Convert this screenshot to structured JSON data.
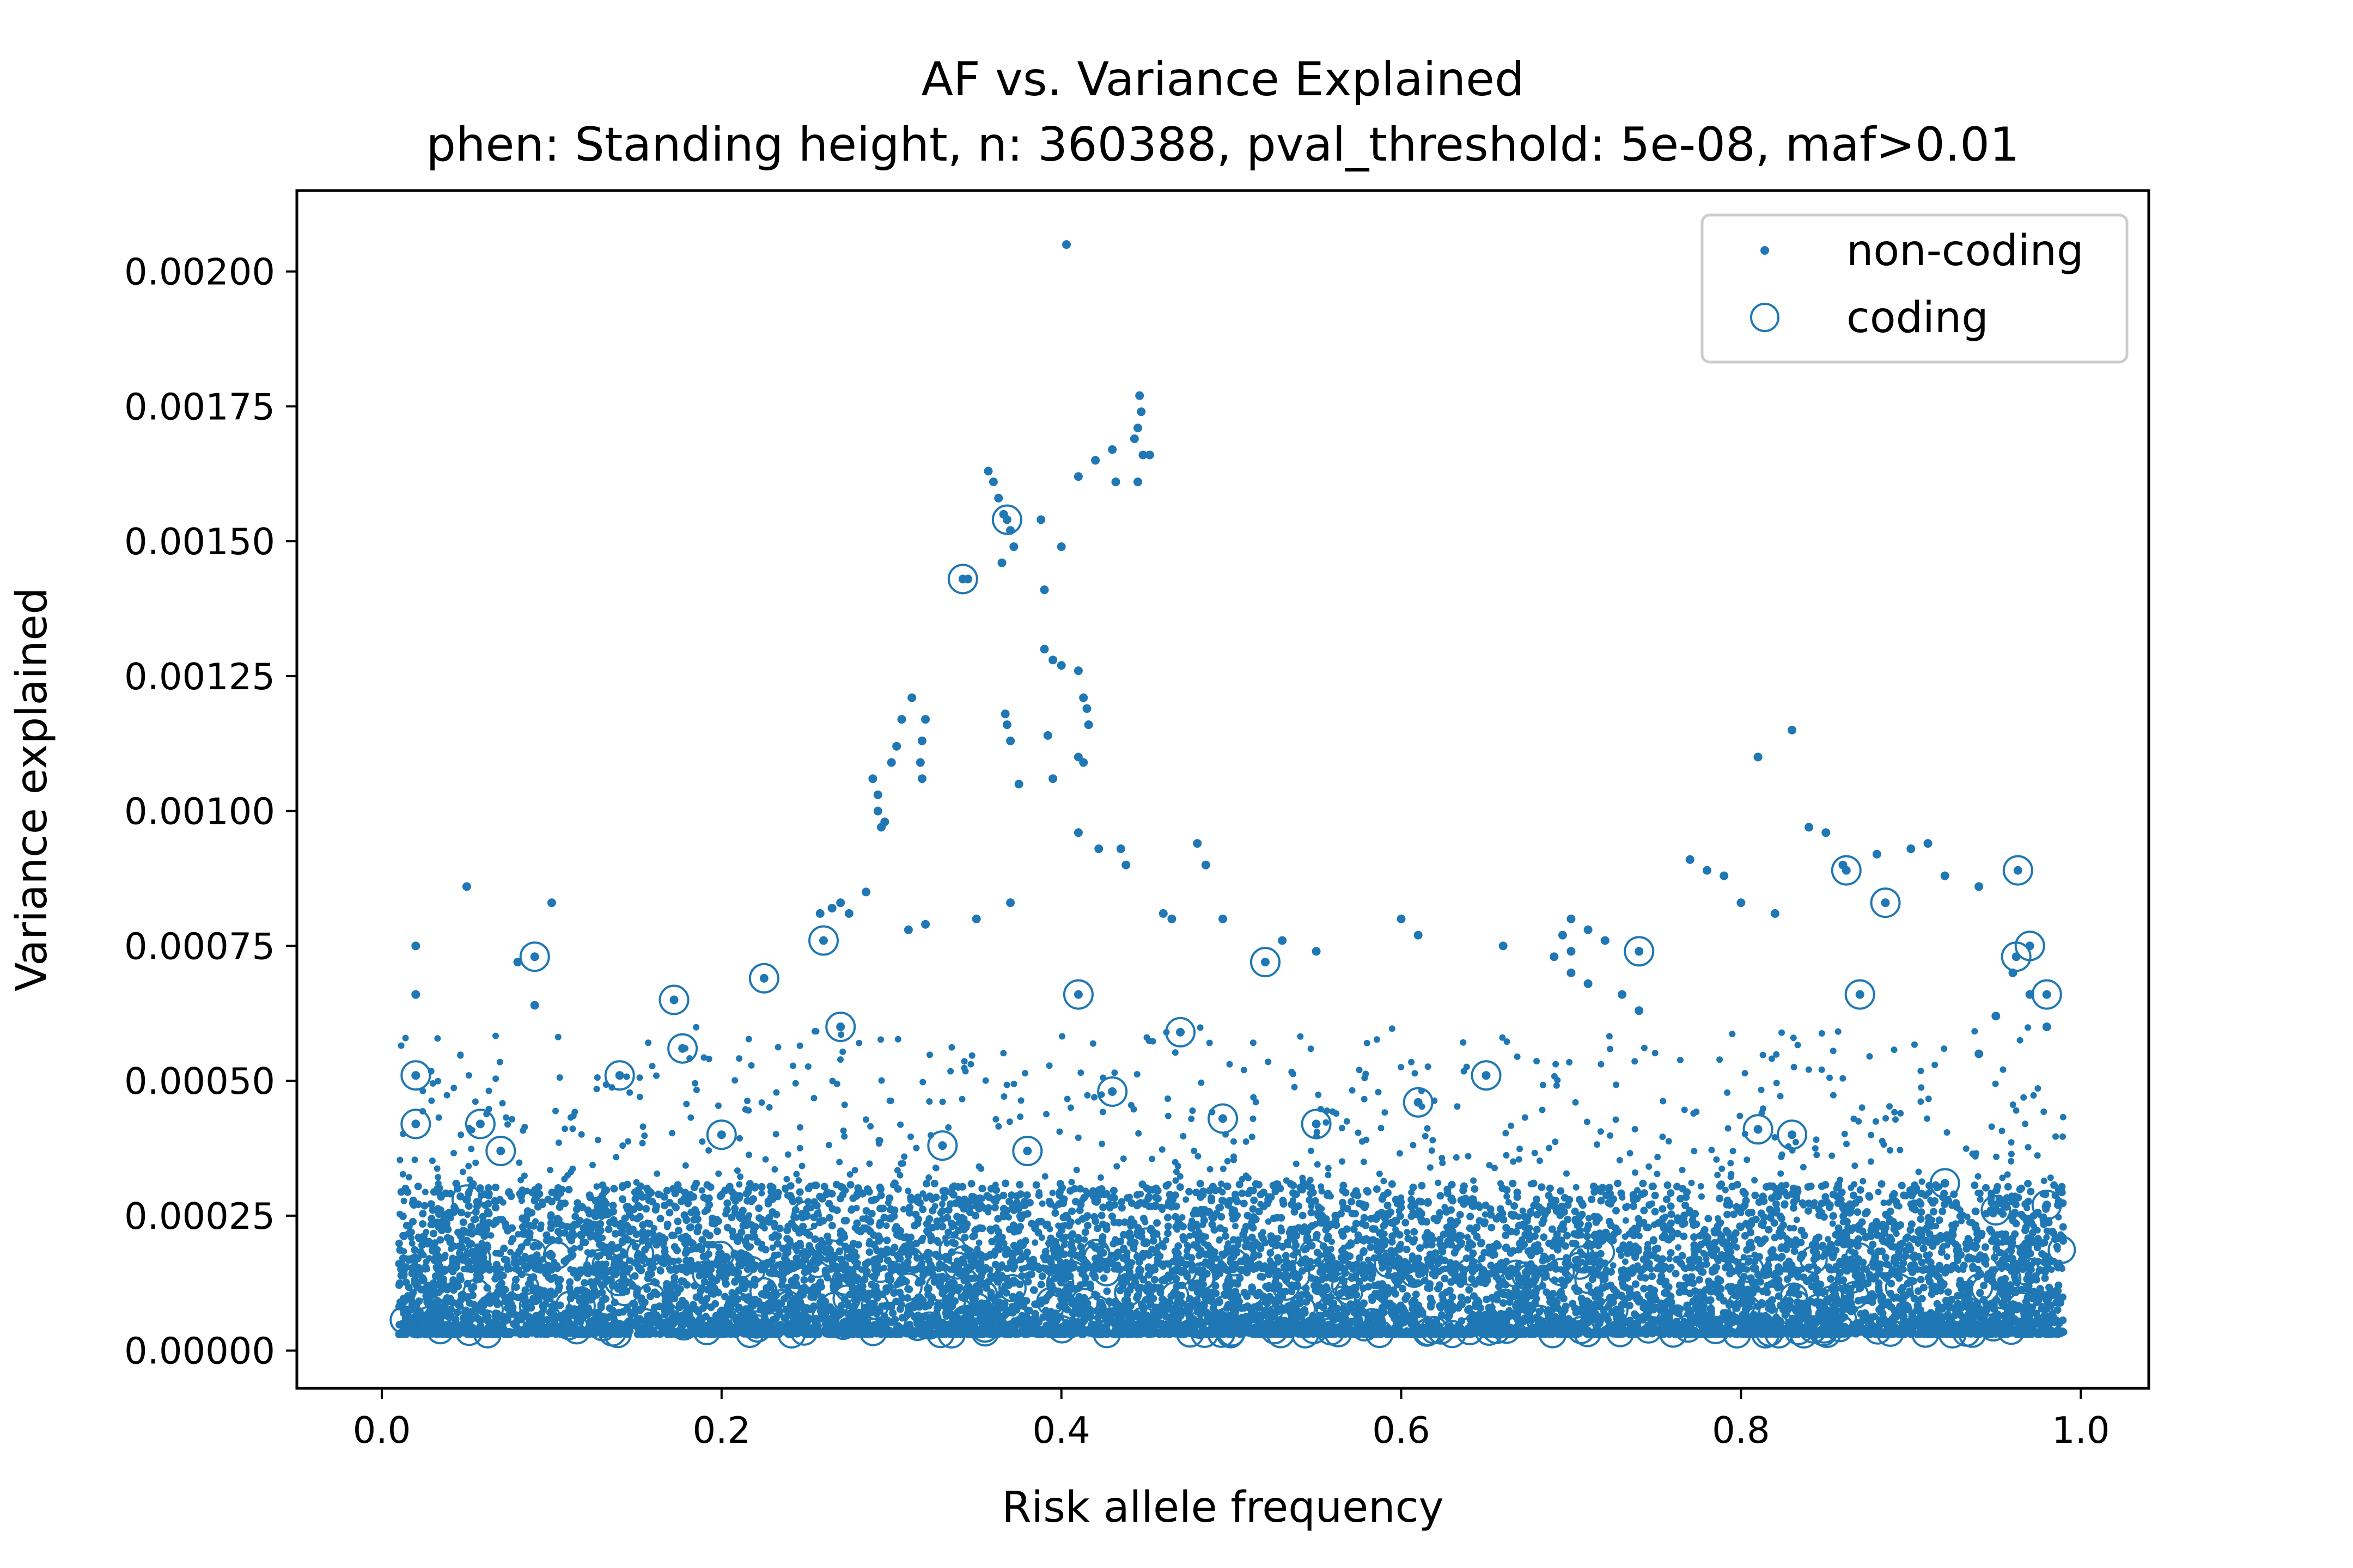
{
  "chart_data": {
    "type": "scatter",
    "title": "AF vs. Variance Explained",
    "subtitle": "phen: Standing height, n: 360388, pval_threshold: 5e-08, maf>0.01",
    "xlabel": "Risk allele frequency",
    "ylabel": "Variance explained",
    "xlim": [
      -0.05,
      1.04
    ],
    "ylim": [
      -7e-05,
      0.00215
    ],
    "x_ticks": [
      0.0,
      0.2,
      0.4,
      0.6,
      0.8,
      1.0
    ],
    "x_tick_labels": [
      "0.0",
      "0.2",
      "0.4",
      "0.6",
      "0.8",
      "1.0"
    ],
    "y_ticks": [
      0.0,
      0.00025,
      0.0005,
      0.00075,
      0.001,
      0.00125,
      0.0015,
      0.00175,
      0.002
    ],
    "y_tick_labels": [
      "0.00000",
      "0.00025",
      "0.00050",
      "0.00075",
      "0.00100",
      "0.00125",
      "0.00150",
      "0.00175",
      "0.00200"
    ],
    "grid": false,
    "legend_position": "top-right",
    "color": "#1f77b4",
    "series": [
      {
        "name": "non-coding",
        "marker": "dot",
        "points": [
          [
            0.403,
            0.00205
          ],
          [
            0.446,
            0.00177
          ],
          [
            0.447,
            0.00174
          ],
          [
            0.445,
            0.00171
          ],
          [
            0.443,
            0.00169
          ],
          [
            0.448,
            0.00166
          ],
          [
            0.452,
            0.00166
          ],
          [
            0.43,
            0.00167
          ],
          [
            0.42,
            0.00165
          ],
          [
            0.41,
            0.00162
          ],
          [
            0.432,
            0.00161
          ],
          [
            0.445,
            0.00161
          ],
          [
            0.357,
            0.00163
          ],
          [
            0.36,
            0.00161
          ],
          [
            0.363,
            0.00158
          ],
          [
            0.366,
            0.00155
          ],
          [
            0.37,
            0.00152
          ],
          [
            0.372,
            0.00149
          ],
          [
            0.365,
            0.00146
          ],
          [
            0.388,
            0.00154
          ],
          [
            0.4,
            0.00149
          ],
          [
            0.39,
            0.00141
          ],
          [
            0.345,
            0.00143
          ],
          [
            0.39,
            0.0013
          ],
          [
            0.395,
            0.00128
          ],
          [
            0.4,
            0.00127
          ],
          [
            0.41,
            0.00126
          ],
          [
            0.413,
            0.00121
          ],
          [
            0.415,
            0.00119
          ],
          [
            0.416,
            0.00116
          ],
          [
            0.41,
            0.0011
          ],
          [
            0.413,
            0.00109
          ],
          [
            0.392,
            0.00114
          ],
          [
            0.367,
            0.00118
          ],
          [
            0.368,
            0.00116
          ],
          [
            0.37,
            0.00113
          ],
          [
            0.312,
            0.00121
          ],
          [
            0.306,
            0.00117
          ],
          [
            0.32,
            0.00117
          ],
          [
            0.318,
            0.00113
          ],
          [
            0.317,
            0.00109
          ],
          [
            0.318,
            0.00106
          ],
          [
            0.303,
            0.00112
          ],
          [
            0.3,
            0.00109
          ],
          [
            0.289,
            0.00106
          ],
          [
            0.292,
            0.00103
          ],
          [
            0.292,
            0.001
          ],
          [
            0.294,
            0.00097
          ],
          [
            0.296,
            0.00098
          ],
          [
            0.375,
            0.00105
          ],
          [
            0.395,
            0.00106
          ],
          [
            0.285,
            0.00085
          ],
          [
            0.265,
            0.00082
          ],
          [
            0.27,
            0.00083
          ],
          [
            0.258,
            0.00081
          ],
          [
            0.275,
            0.00081
          ],
          [
            0.31,
            0.00078
          ],
          [
            0.32,
            0.00079
          ],
          [
            0.35,
            0.0008
          ],
          [
            0.37,
            0.00083
          ],
          [
            0.41,
            0.00096
          ],
          [
            0.422,
            0.00093
          ],
          [
            0.435,
            0.00093
          ],
          [
            0.438,
            0.0009
          ],
          [
            0.46,
            0.00081
          ],
          [
            0.465,
            0.0008
          ],
          [
            0.48,
            0.00094
          ],
          [
            0.485,
            0.0009
          ],
          [
            0.495,
            0.0008
          ],
          [
            0.53,
            0.00076
          ],
          [
            0.55,
            0.00074
          ],
          [
            0.6,
            0.0008
          ],
          [
            0.61,
            0.00077
          ],
          [
            0.66,
            0.00075
          ],
          [
            0.05,
            0.00086
          ],
          [
            0.1,
            0.00083
          ],
          [
            0.02,
            0.00075
          ],
          [
            0.02,
            0.00066
          ],
          [
            0.08,
            0.00072
          ],
          [
            0.09,
            0.00064
          ],
          [
            0.81,
            0.0011
          ],
          [
            0.83,
            0.00115
          ],
          [
            0.84,
            0.00097
          ],
          [
            0.85,
            0.00096
          ],
          [
            0.86,
            0.0009
          ],
          [
            0.77,
            0.00091
          ],
          [
            0.78,
            0.00089
          ],
          [
            0.79,
            0.00088
          ],
          [
            0.8,
            0.00083
          ],
          [
            0.82,
            0.00081
          ],
          [
            0.9,
            0.00093
          ],
          [
            0.91,
            0.00094
          ],
          [
            0.92,
            0.00088
          ],
          [
            0.94,
            0.00086
          ],
          [
            0.88,
            0.00092
          ],
          [
            0.7,
            0.0008
          ],
          [
            0.71,
            0.00078
          ],
          [
            0.7,
            0.00074
          ],
          [
            0.72,
            0.00076
          ],
          [
            0.7,
            0.0007
          ],
          [
            0.71,
            0.00068
          ],
          [
            0.73,
            0.00066
          ],
          [
            0.74,
            0.00063
          ],
          [
            0.69,
            0.00073
          ],
          [
            0.695,
            0.00077
          ],
          [
            0.96,
            0.0007
          ],
          [
            0.97,
            0.00066
          ],
          [
            0.95,
            0.00062
          ],
          [
            0.98,
            0.0006
          ],
          [
            0.94,
            0.00055
          ]
        ]
      },
      {
        "name": "coding",
        "marker": "open-circle",
        "points": [
          [
            0.368,
            0.00154
          ],
          [
            0.342,
            0.00143
          ],
          [
            0.41,
            0.00066
          ],
          [
            0.09,
            0.00073
          ],
          [
            0.52,
            0.00072
          ],
          [
            0.862,
            0.00089
          ],
          [
            0.885,
            0.00083
          ],
          [
            0.963,
            0.00089
          ],
          [
            0.97,
            0.00075
          ],
          [
            0.962,
            0.00073
          ],
          [
            0.98,
            0.00066
          ],
          [
            0.87,
            0.00066
          ],
          [
            0.74,
            0.00074
          ],
          [
            0.26,
            0.00076
          ],
          [
            0.225,
            0.00069
          ],
          [
            0.27,
            0.0006
          ],
          [
            0.172,
            0.00065
          ],
          [
            0.177,
            0.00056
          ],
          [
            0.47,
            0.00059
          ],
          [
            0.65,
            0.00051
          ],
          [
            0.02,
            0.00051
          ],
          [
            0.02,
            0.00042
          ],
          [
            0.058,
            0.00042
          ],
          [
            0.07,
            0.00037
          ],
          [
            0.14,
            0.00051
          ],
          [
            0.2,
            0.0004
          ],
          [
            0.43,
            0.00048
          ],
          [
            0.495,
            0.00043
          ],
          [
            0.55,
            0.00042
          ],
          [
            0.61,
            0.00046
          ],
          [
            0.81,
            0.00041
          ],
          [
            0.83,
            0.0004
          ],
          [
            0.92,
            0.00031
          ],
          [
            0.95,
            0.00026
          ],
          [
            0.98,
            0.00027
          ],
          [
            0.33,
            0.00038
          ],
          [
            0.38,
            0.00037
          ],
          [
            0.45,
            0.0002
          ],
          [
            0.25,
            0.00025
          ],
          [
            0.05,
            0.00028
          ]
        ]
      }
    ],
    "background_cloud": {
      "series": "non-coding",
      "description_free": true,
      "x_range": [
        0.01,
        0.99
      ],
      "y_range": [
        3e-05,
        0.0006
      ]
    }
  }
}
